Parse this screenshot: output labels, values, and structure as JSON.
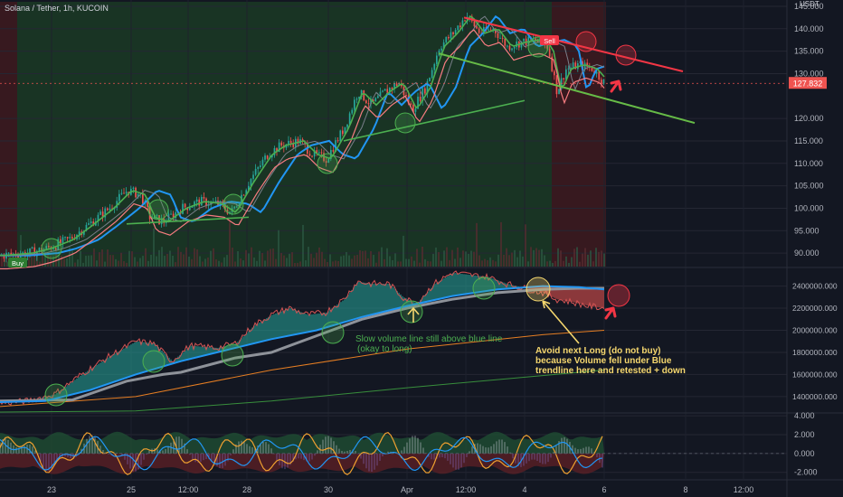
{
  "title": "Solana / Tether, 1h, KUCOIN",
  "currency": "USDT",
  "price_badge": "127.832",
  "colors": {
    "background": "#131722",
    "up": "#26a69a",
    "down": "#ef5350",
    "bull_zone": "#1b3a24",
    "bear_zone": "#3e1a1e",
    "blue_line": "#2196f3",
    "green_line": "#4caf50",
    "red_trend": "#f23645",
    "green_trend": "#66bb47",
    "annotation_yellow": "#f5d76e"
  },
  "signals": {
    "buy": "Buy",
    "sell": "Sell"
  },
  "annotations": {
    "green_note": [
      "Slow volume line still above blue line",
      "(okay to long)"
    ],
    "yellow_note": [
      "Avoid next Long (do not buy)",
      "because Volume fell under Blue",
      "trendline here and retested + down"
    ]
  },
  "chart_data": [
    {
      "type": "candlestick",
      "title": "Solana / Tether, 1h, KUCOIN",
      "x_tick_labels": [
        "23",
        "25",
        "12:00",
        "28",
        "30",
        "Apr",
        "12:00",
        "4",
        "6",
        "8",
        "12:00"
      ],
      "y_tick_labels": [
        "145.000",
        "140.000",
        "135.000",
        "130.000",
        "120.000",
        "115.000",
        "110.000",
        "105.000",
        "100.000",
        "95.000",
        "90.000"
      ],
      "ylim": [
        87,
        146
      ],
      "last_price": 127.832,
      "price_path": [
        [
          0,
          89.5
        ],
        [
          30,
          90
        ],
        [
          50,
          91
        ],
        [
          75,
          93
        ],
        [
          95,
          96
        ],
        [
          120,
          100
        ],
        [
          140,
          104
        ],
        [
          155,
          103
        ],
        [
          165,
          98
        ],
        [
          180,
          97
        ],
        [
          200,
          100
        ],
        [
          220,
          101.5
        ],
        [
          240,
          101
        ],
        [
          255,
          99
        ],
        [
          275,
          106
        ],
        [
          295,
          112
        ],
        [
          310,
          114
        ],
        [
          330,
          115
        ],
        [
          345,
          112
        ],
        [
          360,
          111
        ],
        [
          380,
          118
        ],
        [
          395,
          126
        ],
        [
          410,
          123
        ],
        [
          425,
          126
        ],
        [
          440,
          128
        ],
        [
          455,
          122
        ],
        [
          470,
          127
        ],
        [
          485,
          136
        ],
        [
          500,
          139
        ],
        [
          515,
          143
        ],
        [
          530,
          139
        ],
        [
          545,
          140
        ],
        [
          560,
          136
        ],
        [
          575,
          137
        ],
        [
          590,
          137.5
        ],
        [
          605,
          136
        ],
        [
          615,
          126
        ],
        [
          625,
          131
        ],
        [
          640,
          132
        ],
        [
          655,
          131
        ],
        [
          668,
          127.8
        ]
      ],
      "trendlines": [
        {
          "name": "resistance",
          "from": [
            513,
            142.5
          ],
          "to": [
            755,
            130.5
          ]
        },
        {
          "name": "support",
          "from": [
            485,
            134.5
          ],
          "to": [
            768,
            119
          ]
        }
      ],
      "price_zones": [
        {
          "kind": "bull",
          "x_from": 19,
          "x_to": 610
        },
        {
          "kind": "bear",
          "x_from": 0,
          "x_to": 19
        },
        {
          "kind": "bear",
          "x_from": 610,
          "x_to": 670
        }
      ]
    },
    {
      "type": "line",
      "title": "",
      "y_tick_labels": [
        "2400000.000",
        "2200000.000",
        "2000000.000",
        "1800000.000",
        "1600000.000",
        "1400000.000"
      ],
      "ylim": [
        1260000,
        2560000
      ],
      "series": [
        {
          "role": "fast_volume",
          "values": [
            [
              0,
              1340000
            ],
            [
              30,
              1360000
            ],
            [
              60,
              1420000
            ],
            [
              90,
              1600000
            ],
            [
              120,
              1760000
            ],
            [
              150,
              1900000
            ],
            [
              170,
              1880000
            ],
            [
              190,
              1720000
            ],
            [
              210,
              1860000
            ],
            [
              240,
              1840000
            ],
            [
              260,
              1880000
            ],
            [
              280,
              2040000
            ],
            [
              300,
              2140000
            ],
            [
              320,
              2200000
            ],
            [
              340,
              2140000
            ],
            [
              360,
              2160000
            ],
            [
              380,
              2280000
            ],
            [
              395,
              2440000
            ],
            [
              410,
              2420000
            ],
            [
              430,
              2420000
            ],
            [
              445,
              2300000
            ],
            [
              460,
              2240000
            ],
            [
              480,
              2420000
            ],
            [
              500,
              2520000
            ],
            [
              520,
              2500000
            ],
            [
              540,
              2480000
            ],
            [
              560,
              2420000
            ],
            [
              580,
              2380000
            ],
            [
              600,
              2340000
            ],
            [
              615,
              2280000
            ],
            [
              630,
              2260000
            ],
            [
              650,
              2220000
            ],
            [
              668,
              2200000
            ]
          ]
        },
        {
          "role": "blue_trend",
          "values": [
            [
              0,
              1350000
            ],
            [
              50,
              1360000
            ],
            [
              100,
              1460000
            ],
            [
              150,
              1600000
            ],
            [
              200,
              1720000
            ],
            [
              250,
              1820000
            ],
            [
              300,
              1920000
            ],
            [
              350,
              2000000
            ],
            [
              400,
              2120000
            ],
            [
              450,
              2220000
            ],
            [
              500,
              2310000
            ],
            [
              550,
              2370000
            ],
            [
              600,
              2400000
            ],
            [
              640,
              2390000
            ],
            [
              668,
              2370000
            ]
          ]
        },
        {
          "role": "slow_volume",
          "values": [
            [
              0,
              1360000
            ],
            [
              80,
              1370000
            ],
            [
              140,
              1540000
            ],
            [
              180,
              1600000
            ],
            [
              200,
              1620000
            ],
            [
              260,
              1750000
            ],
            [
              300,
              1800000
            ],
            [
              350,
              1950000
            ],
            [
              400,
              2100000
            ],
            [
              450,
              2200000
            ],
            [
              500,
              2280000
            ],
            [
              550,
              2340000
            ],
            [
              600,
              2370000
            ],
            [
              640,
              2380000
            ],
            [
              668,
              2380000
            ]
          ]
        },
        {
          "role": "orange_ma",
          "values": [
            [
              0,
              1310000
            ],
            [
              150,
              1400000
            ],
            [
              300,
              1640000
            ],
            [
              450,
              1830000
            ],
            [
              600,
              1960000
            ],
            [
              668,
              2000000
            ]
          ]
        },
        {
          "role": "green_ma",
          "values": [
            [
              0,
              1260000
            ],
            [
              150,
              1270000
            ],
            [
              300,
              1360000
            ],
            [
              450,
              1480000
            ],
            [
              600,
              1590000
            ],
            [
              668,
              1640000
            ]
          ]
        }
      ]
    },
    {
      "type": "line",
      "title": "",
      "y_tick_labels": [
        "4.000",
        "2.000",
        "0.000",
        "-2.000"
      ],
      "ylim": [
        -2.7,
        4.2
      ]
    }
  ]
}
